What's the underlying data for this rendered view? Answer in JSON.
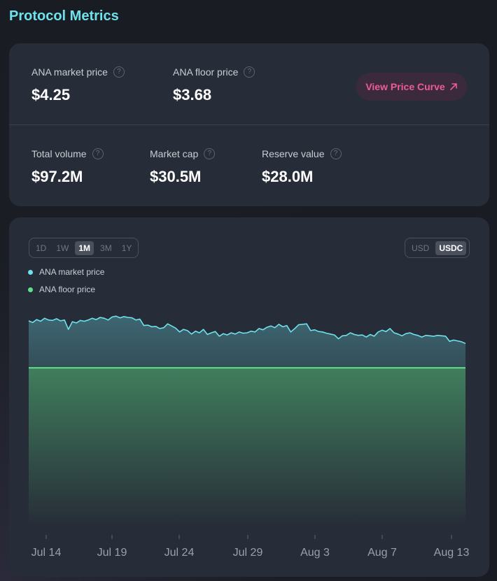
{
  "page": {
    "title": "Protocol Metrics"
  },
  "metrics": {
    "market_price": {
      "label": "ANA market price",
      "value": "$4.25"
    },
    "floor_price": {
      "label": "ANA floor price",
      "value": "$3.68"
    },
    "total_volume": {
      "label": "Total volume",
      "value": "$97.2M"
    },
    "market_cap": {
      "label": "Market cap",
      "value": "$30.5M"
    },
    "reserve_value": {
      "label": "Reserve value",
      "value": "$28.0M"
    },
    "help_glyph": "?"
  },
  "actions": {
    "view_price_curve": "View Price Curve",
    "view_price_curve_icon": "arrow-up-right-icon"
  },
  "range_selector": {
    "options": [
      "1D",
      "1W",
      "1M",
      "3M",
      "1Y"
    ],
    "selected": "1M"
  },
  "currency_selector": {
    "options": [
      "USD",
      "USDC"
    ],
    "selected": "USDC"
  },
  "colors": {
    "market": "#6ee2ec",
    "floor": "#5fe08a",
    "accent": "#ee5b9c"
  },
  "chart_data": {
    "type": "area",
    "series": [
      {
        "name": "ANA market price",
        "color": "#6ee2ec"
      },
      {
        "name": "ANA floor price",
        "color": "#5fe08a"
      }
    ],
    "x_ticks": [
      "Jul 14",
      "Jul 19",
      "Jul 24",
      "Jul 29",
      "Aug 3",
      "Aug 7",
      "Aug 13"
    ],
    "x_range": [
      "Jul 13",
      "Aug 13"
    ],
    "y_range": [
      0,
      5.4
    ],
    "floor_value": 3.68,
    "market_values": [
      4.78,
      4.74,
      4.81,
      4.77,
      4.84,
      4.8,
      4.79,
      4.83,
      4.78,
      4.8,
      4.58,
      4.76,
      4.73,
      4.79,
      4.77,
      4.8,
      4.84,
      4.81,
      4.86,
      4.84,
      4.8,
      4.87,
      4.89,
      4.85,
      4.88,
      4.86,
      4.85,
      4.8,
      4.82,
      4.67,
      4.68,
      4.64,
      4.65,
      4.6,
      4.62,
      4.71,
      4.66,
      4.61,
      4.52,
      4.58,
      4.55,
      4.47,
      4.54,
      4.5,
      4.58,
      4.46,
      4.5,
      4.53,
      4.42,
      4.48,
      4.45,
      4.5,
      4.47,
      4.52,
      4.49,
      4.5,
      4.54,
      4.52,
      4.6,
      4.57,
      4.63,
      4.66,
      4.62,
      4.7,
      4.64,
      4.67,
      4.52,
      4.6,
      4.69,
      4.7,
      4.71,
      4.55,
      4.57,
      4.53,
      4.52,
      4.49,
      4.47,
      4.45,
      4.36,
      4.43,
      4.44,
      4.5,
      4.46,
      4.44,
      4.45,
      4.4,
      4.46,
      4.42,
      4.52,
      4.56,
      4.53,
      4.6,
      4.5,
      4.47,
      4.43,
      4.48,
      4.5,
      4.46,
      4.44,
      4.4,
      4.44,
      4.43,
      4.42,
      4.44,
      4.43,
      4.42,
      4.3,
      4.33,
      4.31,
      4.29,
      4.25
    ]
  }
}
